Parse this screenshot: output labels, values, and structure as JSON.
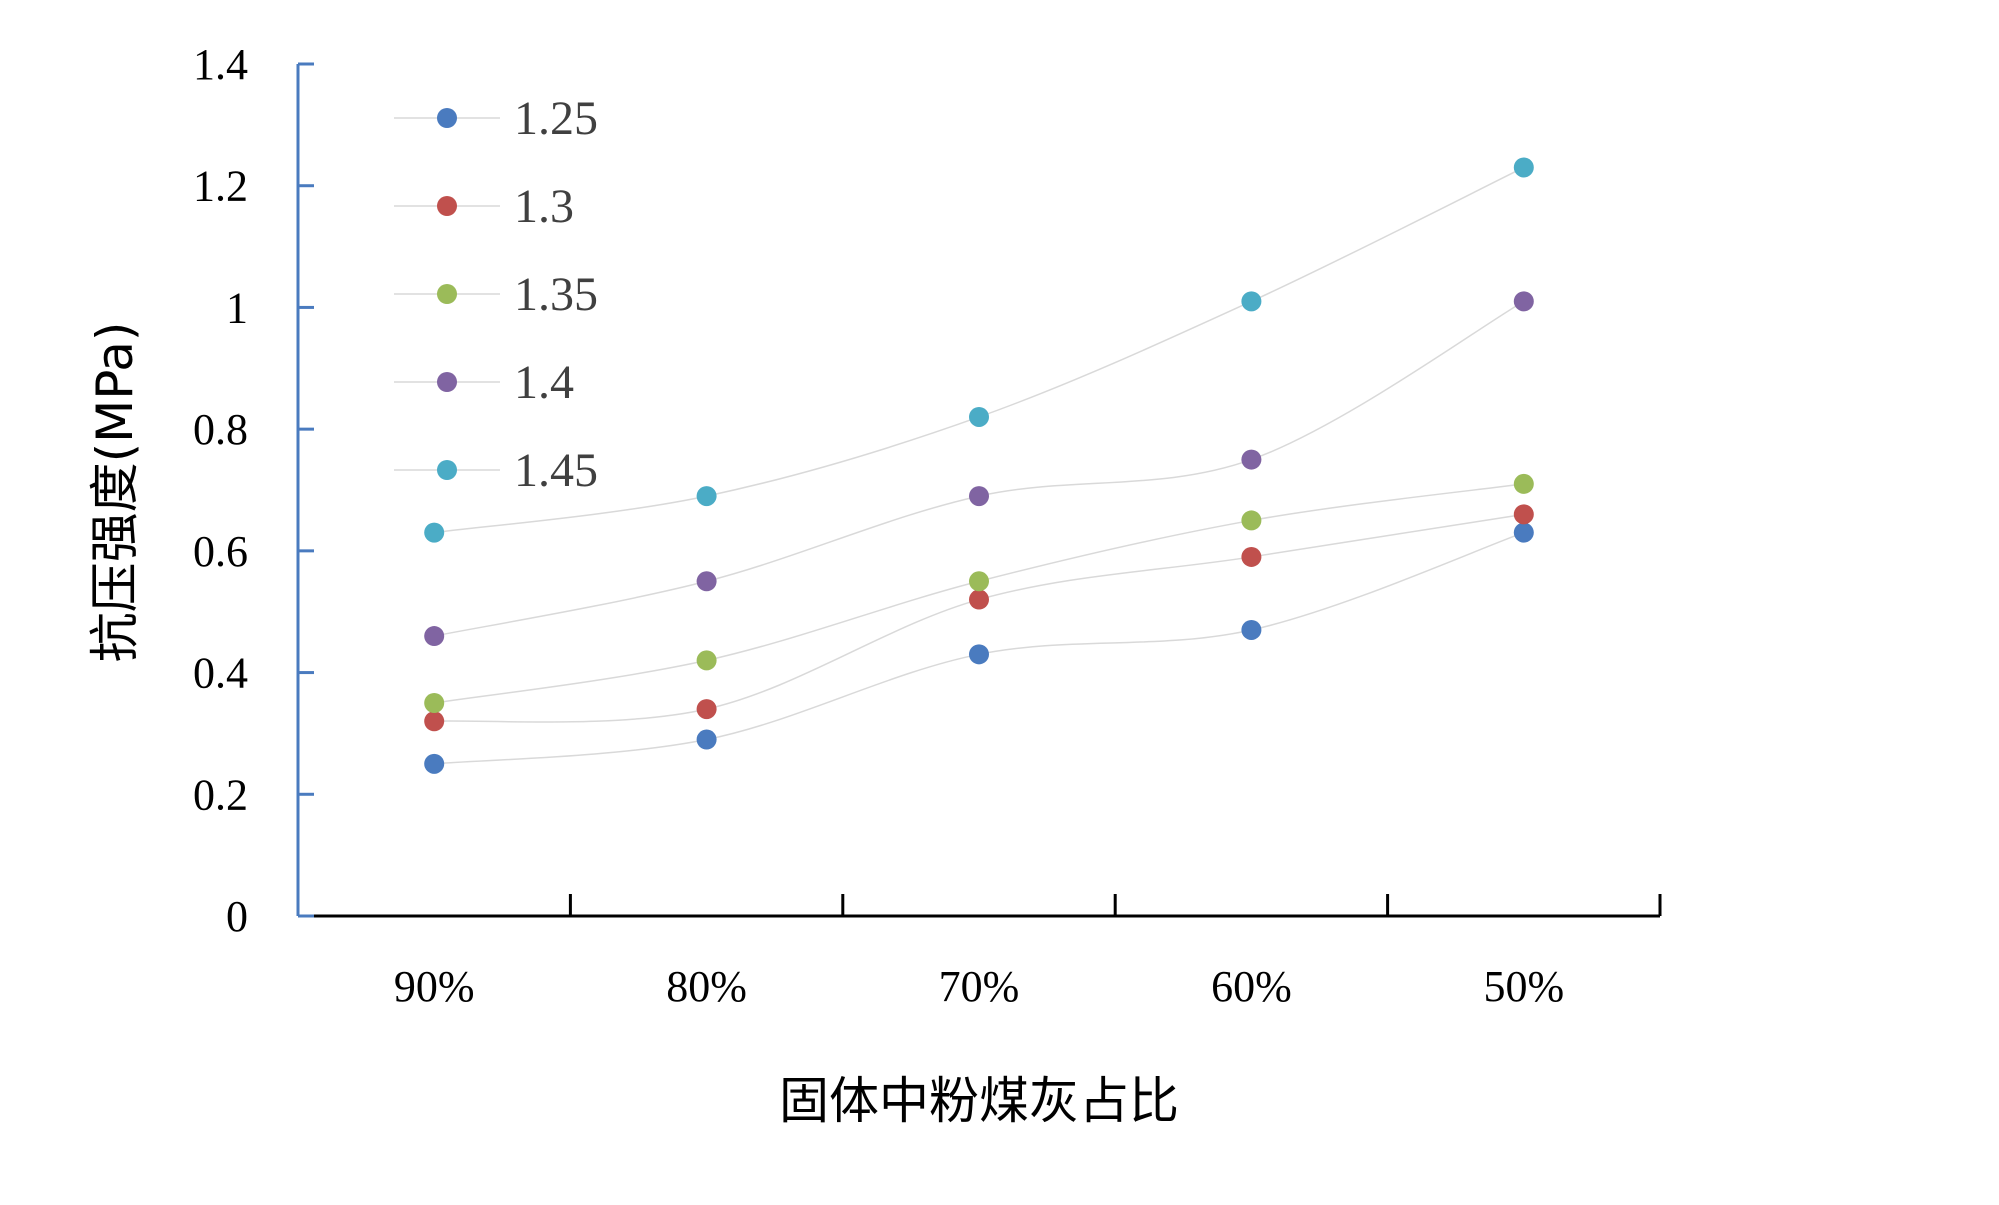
{
  "chart_data": {
    "type": "line",
    "title": "",
    "xlabel": "固体中粉煤灰占比",
    "ylabel": "抗压强度(MPa)",
    "categories": [
      "90%",
      "80%",
      "70%",
      "60%",
      "50%"
    ],
    "ylim": [
      0,
      1.4
    ],
    "yticks": [
      "0",
      "0.2",
      "0.4",
      "0.6",
      "0.8",
      "1",
      "1.2",
      "1.4"
    ],
    "grid": false,
    "smooth": true,
    "legend_position": "top-left",
    "series": [
      {
        "name": "1.25",
        "color": "#4a7bbf",
        "values": [
          0.25,
          0.29,
          0.43,
          0.47,
          0.63
        ]
      },
      {
        "name": "1.3",
        "color": "#c0504d",
        "values": [
          0.32,
          0.34,
          0.52,
          0.59,
          0.66
        ]
      },
      {
        "name": "1.35",
        "color": "#9bbb59",
        "values": [
          0.35,
          0.42,
          0.55,
          0.65,
          0.71
        ]
      },
      {
        "name": "1.4",
        "color": "#8064a2",
        "values": [
          0.46,
          0.55,
          0.69,
          0.75,
          1.01
        ]
      },
      {
        "name": "1.45",
        "color": "#4bacc6",
        "values": [
          0.63,
          0.69,
          0.82,
          1.01,
          1.23
        ]
      }
    ]
  }
}
